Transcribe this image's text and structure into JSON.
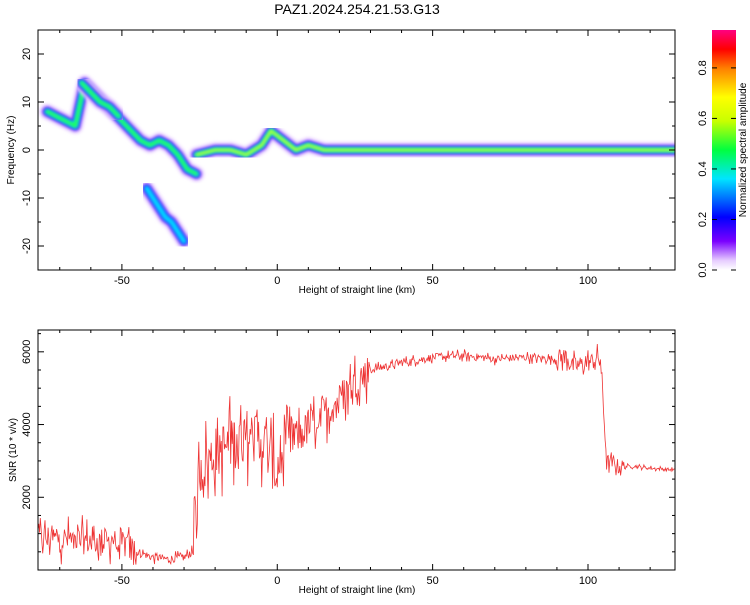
{
  "title": "PAZ1.2024.254.21.53.G13",
  "chart_data": [
    {
      "type": "heatmap",
      "title": "PAZ1.2024.254.21.53.G13",
      "xlabel": "Height of straight line (km)",
      "ylabel": "Frequency (Hz)",
      "xlim": [
        -77,
        128
      ],
      "ylim": [
        -25,
        25
      ],
      "xticks": [
        -50,
        0,
        50,
        100
      ],
      "yticks": [
        -20,
        -10,
        0,
        10,
        20
      ],
      "colorbar": {
        "label": "Normalized spectral amplitude",
        "range": [
          0.0,
          0.95
        ],
        "ticks": [
          0.0,
          0.2,
          0.4,
          0.6,
          0.8
        ],
        "colormap": "rainbow (white-violet-blue-cyan-green-yellow-orange-red-magenta)"
      },
      "traces": [
        {
          "x": [
            -74,
            -71,
            -68,
            -65,
            -62,
            -59,
            -56,
            -53,
            -50,
            -47,
            -44,
            -41,
            -38,
            -35,
            -32,
            -29,
            -26
          ],
          "y": [
            8,
            7,
            6,
            5,
            14,
            12,
            10,
            8,
            6,
            4,
            2,
            1,
            2,
            1,
            -1,
            -4,
            -5
          ],
          "amplitude": 0.45
        },
        {
          "x": [
            -63,
            -60,
            -57,
            -54,
            -51
          ],
          "y": [
            14,
            12,
            10,
            9,
            7
          ],
          "amplitude": 0.5
        },
        {
          "x": [
            -42,
            -40,
            -38,
            -36,
            -34,
            -32,
            -30
          ],
          "y": [
            -8,
            -10,
            -12,
            -14,
            -15,
            -17,
            -19
          ],
          "amplitude": 0.35
        },
        {
          "x": [
            -26,
            -20,
            -15,
            -10,
            -5,
            -2,
            2,
            6,
            10,
            15,
            20,
            25,
            30,
            40,
            50,
            60,
            70,
            80,
            90,
            100,
            110,
            120,
            128
          ],
          "y": [
            -1,
            0,
            0,
            -1,
            1,
            4,
            2,
            0,
            1,
            0,
            0,
            0,
            0,
            0,
            0,
            0,
            0,
            0,
            0,
            0,
            0,
            0,
            0
          ],
          "amplitude": 0.6
        }
      ]
    },
    {
      "type": "line",
      "xlabel": "Height of straight line (km)",
      "ylabel": "SNR (10 * v/v)",
      "xlim": [
        -77,
        128
      ],
      "ylim": [
        0,
        6600
      ],
      "xticks": [
        -50,
        0,
        50,
        100
      ],
      "yticks": [
        2000,
        4000,
        6000
      ],
      "color": "#ee3333",
      "envelope": {
        "x": [
          -77,
          -70,
          -60,
          -50,
          -45,
          -40,
          -35,
          -30,
          -27,
          -25,
          -22,
          -20,
          -15,
          -10,
          -5,
          0,
          5,
          10,
          15,
          20,
          25,
          30,
          35,
          40,
          50,
          60,
          70,
          80,
          90,
          93,
          95,
          100,
          103,
          104,
          106,
          110,
          115,
          120,
          128
        ],
        "y": [
          900,
          850,
          800,
          750,
          500,
          350,
          300,
          350,
          500,
          2800,
          3000,
          3200,
          3500,
          3700,
          3600,
          2700,
          3600,
          3900,
          4300,
          4700,
          5200,
          5500,
          5600,
          5700,
          5850,
          5900,
          5800,
          5850,
          5800,
          5900,
          5600,
          5700,
          5800,
          5800,
          3000,
          2850,
          2850,
          2800,
          2750
        ]
      }
    }
  ]
}
